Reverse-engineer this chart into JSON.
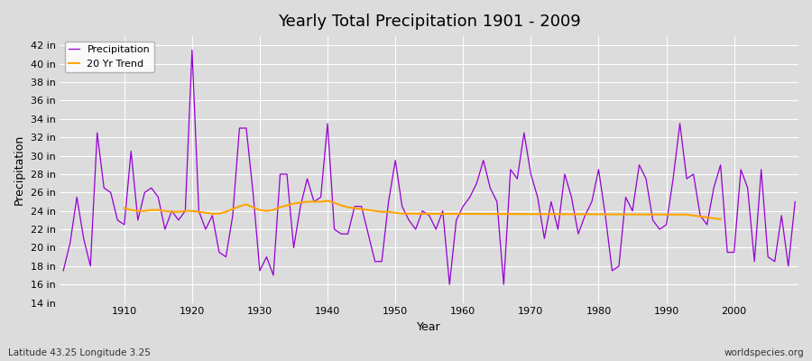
{
  "title": "Yearly Total Precipitation 1901 - 2009",
  "xlabel": "Year",
  "ylabel": "Precipitation",
  "subtitle": "Latitude 43.25 Longitude 3.25",
  "watermark": "worldspecies.org",
  "ylim": [
    14,
    43
  ],
  "yticks": [
    14,
    16,
    18,
    20,
    22,
    24,
    26,
    28,
    30,
    32,
    34,
    36,
    38,
    40,
    42
  ],
  "ytick_labels": [
    "14 in",
    "16 in",
    "18 in",
    "20 in",
    "22 in",
    "24 in",
    "26 in",
    "28 in",
    "30 in",
    "32 in",
    "34 in",
    "36 in",
    "38 in",
    "40 in",
    "42 in"
  ],
  "xticks": [
    1910,
    1920,
    1930,
    1940,
    1950,
    1960,
    1970,
    1980,
    1990,
    2000
  ],
  "precip_color": "#9400D3",
  "trend_color": "#FFA500",
  "bg_color": "#DCDCDC",
  "plot_bg_color": "#DCDCDC",
  "years": [
    1901,
    1902,
    1903,
    1904,
    1905,
    1906,
    1907,
    1908,
    1909,
    1910,
    1911,
    1912,
    1913,
    1914,
    1915,
    1916,
    1917,
    1918,
    1919,
    1920,
    1921,
    1922,
    1923,
    1924,
    1925,
    1926,
    1927,
    1928,
    1929,
    1930,
    1931,
    1932,
    1933,
    1934,
    1935,
    1936,
    1937,
    1938,
    1939,
    1940,
    1941,
    1942,
    1943,
    1944,
    1945,
    1946,
    1947,
    1948,
    1949,
    1950,
    1951,
    1952,
    1953,
    1954,
    1955,
    1956,
    1957,
    1958,
    1959,
    1960,
    1961,
    1962,
    1963,
    1964,
    1965,
    1966,
    1967,
    1968,
    1969,
    1970,
    1971,
    1972,
    1973,
    1974,
    1975,
    1976,
    1977,
    1978,
    1979,
    1980,
    1981,
    1982,
    1983,
    1984,
    1985,
    1986,
    1987,
    1988,
    1989,
    1990,
    1991,
    1992,
    1993,
    1994,
    1995,
    1996,
    1997,
    1998,
    1999,
    2000,
    2001,
    2002,
    2003,
    2004,
    2005,
    2006,
    2007,
    2008,
    2009
  ],
  "precip": [
    17.5,
    20.5,
    25.5,
    21.0,
    18.0,
    32.5,
    26.5,
    26.0,
    23.0,
    22.5,
    30.5,
    23.0,
    26.0,
    26.5,
    25.5,
    22.0,
    24.0,
    23.0,
    24.0,
    41.5,
    24.0,
    22.0,
    23.5,
    19.5,
    19.0,
    23.5,
    33.0,
    33.0,
    26.0,
    17.5,
    19.0,
    17.0,
    28.0,
    28.0,
    20.0,
    24.5,
    27.5,
    25.0,
    25.5,
    33.5,
    22.0,
    21.5,
    21.5,
    24.5,
    24.5,
    21.5,
    18.5,
    18.5,
    25.0,
    29.5,
    24.5,
    23.0,
    22.0,
    24.0,
    23.5,
    22.0,
    24.0,
    16.0,
    23.0,
    24.5,
    25.5,
    27.0,
    29.5,
    26.5,
    25.0,
    16.0,
    28.5,
    27.5,
    32.5,
    28.0,
    25.5,
    21.0,
    25.0,
    22.0,
    28.0,
    25.5,
    21.5,
    23.5,
    25.0,
    28.5,
    23.5,
    17.5,
    18.0,
    25.5,
    24.0,
    29.0,
    27.5,
    23.0,
    22.0,
    22.5,
    27.5,
    33.5,
    27.5,
    28.0,
    23.5,
    22.5,
    26.5,
    29.0,
    19.5,
    19.5,
    28.5,
    26.5,
    18.5,
    28.5,
    19.0,
    18.5,
    23.5,
    18.0,
    25.0
  ],
  "trend_years": [
    1910,
    1911,
    1912,
    1913,
    1914,
    1915,
    1916,
    1917,
    1918,
    1919,
    1920,
    1921,
    1922,
    1923,
    1924,
    1925,
    1926,
    1927,
    1928,
    1929,
    1930,
    1931,
    1932,
    1933,
    1934,
    1935,
    1936,
    1937,
    1938,
    1939,
    1940,
    1941,
    1942,
    1943,
    1944,
    1945,
    1946,
    1947,
    1948,
    1949,
    1950,
    1951,
    1993,
    1994,
    1995,
    1996,
    1997,
    1998
  ],
  "trend_vals": [
    24.3,
    24.1,
    24.0,
    24.0,
    24.1,
    24.1,
    24.0,
    23.9,
    23.9,
    24.0,
    24.0,
    23.9,
    23.8,
    23.7,
    23.7,
    23.9,
    24.2,
    24.5,
    24.7,
    24.4,
    24.1,
    24.0,
    24.1,
    24.4,
    24.6,
    24.8,
    24.9,
    25.0,
    25.0,
    25.0,
    25.1,
    24.9,
    24.6,
    24.4,
    24.3,
    24.2,
    24.1,
    24.0,
    23.9,
    23.9,
    23.8,
    23.7,
    23.6,
    23.5,
    23.4,
    23.3,
    23.2,
    23.1
  ]
}
